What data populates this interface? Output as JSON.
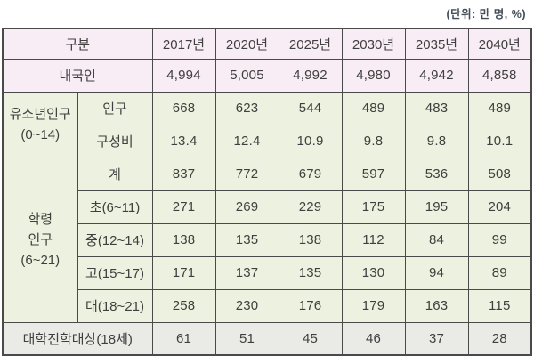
{
  "unit_label": "(단위: 만 명, %)",
  "colors": {
    "pink_section_bg": "#f8edf4",
    "green_section_bg": "#ecf2df",
    "gray_section_bg": "#eaeae7",
    "border": "#4a4a4a",
    "text": "#3f3f3f",
    "highlight_text": "#e1524a"
  },
  "header": {
    "label": "구분",
    "years": [
      "2017년",
      "2020년",
      "2025년",
      "2030년",
      "2035년",
      "2040년"
    ]
  },
  "koreans": {
    "label": "내국인",
    "values": [
      "4,994",
      "5,005",
      "4,992",
      "4,980",
      "4,942",
      "4,858"
    ]
  },
  "youth": {
    "group_label": "유소년인구\n(0~14)",
    "rows": [
      {
        "label": "인구",
        "values": [
          "668",
          "623",
          "544",
          "489",
          "483",
          "489"
        ]
      },
      {
        "label": "구성비",
        "values": [
          "13.4",
          "12.4",
          "10.9",
          "9.8",
          "9.8",
          "10.1"
        ]
      }
    ]
  },
  "school_age": {
    "group_label": "학령\n인구\n(6~21)",
    "rows": [
      {
        "label": "계",
        "values": [
          "837",
          "772",
          "679",
          "597",
          "536",
          "508"
        ]
      },
      {
        "label": "초(6~11)",
        "values": [
          "271",
          "269",
          "229",
          "175",
          "195",
          "204"
        ]
      },
      {
        "label": "중(12~14)",
        "values": [
          "138",
          "135",
          "138",
          "112",
          "84",
          "99"
        ]
      },
      {
        "label": "고(15~17)",
        "values": [
          "171",
          "137",
          "135",
          "130",
          "94",
          "89"
        ]
      },
      {
        "label": "대(18~21)",
        "values": [
          "258",
          "230",
          "176",
          "179",
          "163",
          "115"
        ]
      }
    ]
  },
  "college_entrance": {
    "label": "대학진학대상(18세)",
    "values": [
      "61",
      "51",
      "45",
      "46",
      "37",
      "28"
    ]
  }
}
